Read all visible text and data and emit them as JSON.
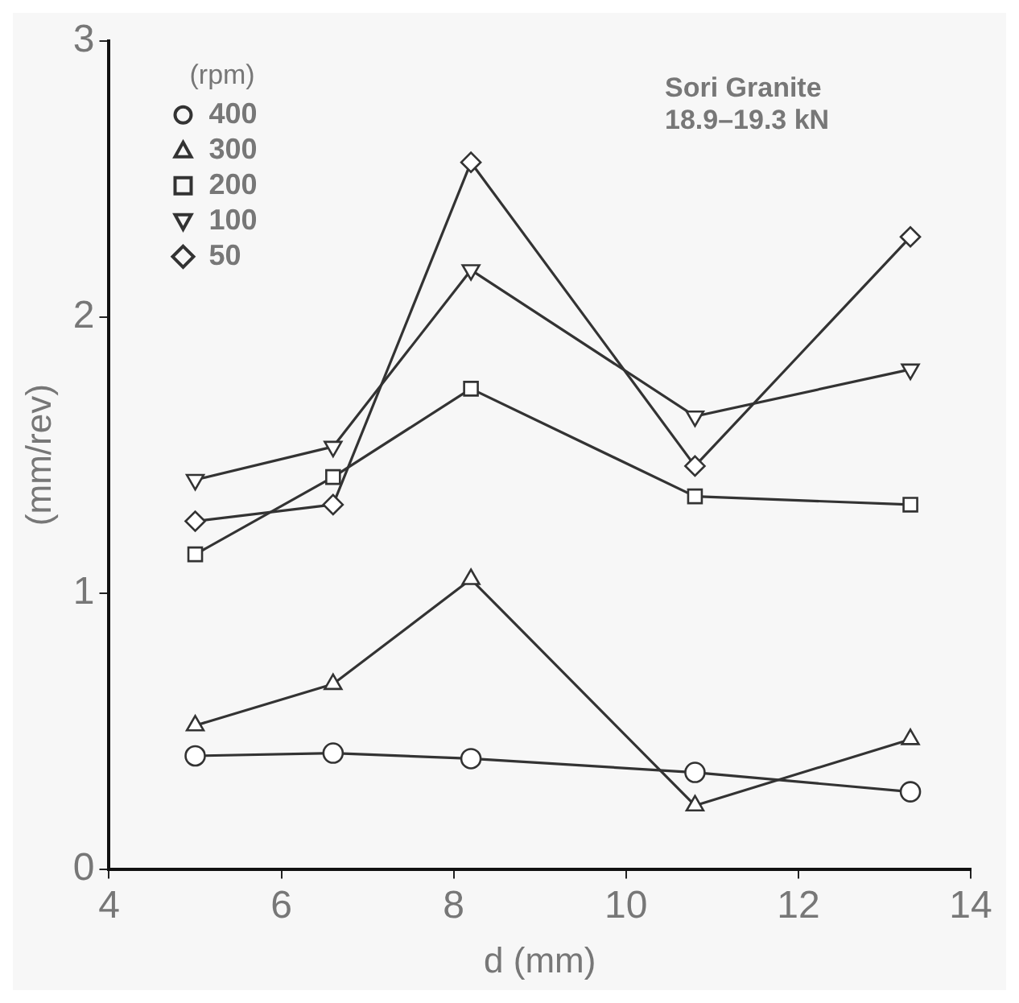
{
  "chart_data": {
    "type": "line",
    "xlabel": "d (mm)",
    "ylabel": "(mm/rev)",
    "legend_title": "(rpm)",
    "legend": "top left",
    "annotations": [
      "Sori Granite",
      "18.9–19.3 kN"
    ],
    "xlim": [
      4,
      14
    ],
    "xticks": [
      4,
      6,
      8,
      10,
      12,
      14
    ],
    "ylim": [
      0,
      3
    ],
    "yticks": [
      0,
      1,
      2,
      3
    ],
    "grid": false,
    "x": [
      5,
      6.6,
      8.2,
      10.8,
      13.3
    ],
    "line_style": "solid",
    "series": [
      {
        "name": "400",
        "color": "#333333",
        "marker": "circle",
        "values": [
          0.41,
          0.42,
          0.4,
          0.35,
          0.28
        ]
      },
      {
        "name": "300",
        "color": "#333333",
        "marker": "triangle",
        "values": [
          0.52,
          0.67,
          1.05,
          0.23,
          0.47
        ]
      },
      {
        "name": "200",
        "color": "#333333",
        "marker": "square",
        "values": [
          1.14,
          1.42,
          1.74,
          1.35,
          1.32
        ]
      },
      {
        "name": "100",
        "color": "#333333",
        "marker": "triangle-down",
        "values": [
          1.41,
          1.53,
          2.17,
          1.64,
          1.81
        ]
      },
      {
        "name": "50",
        "color": "#333333",
        "marker": "diamond",
        "values": [
          1.26,
          1.32,
          2.56,
          1.46,
          2.29
        ]
      }
    ]
  }
}
